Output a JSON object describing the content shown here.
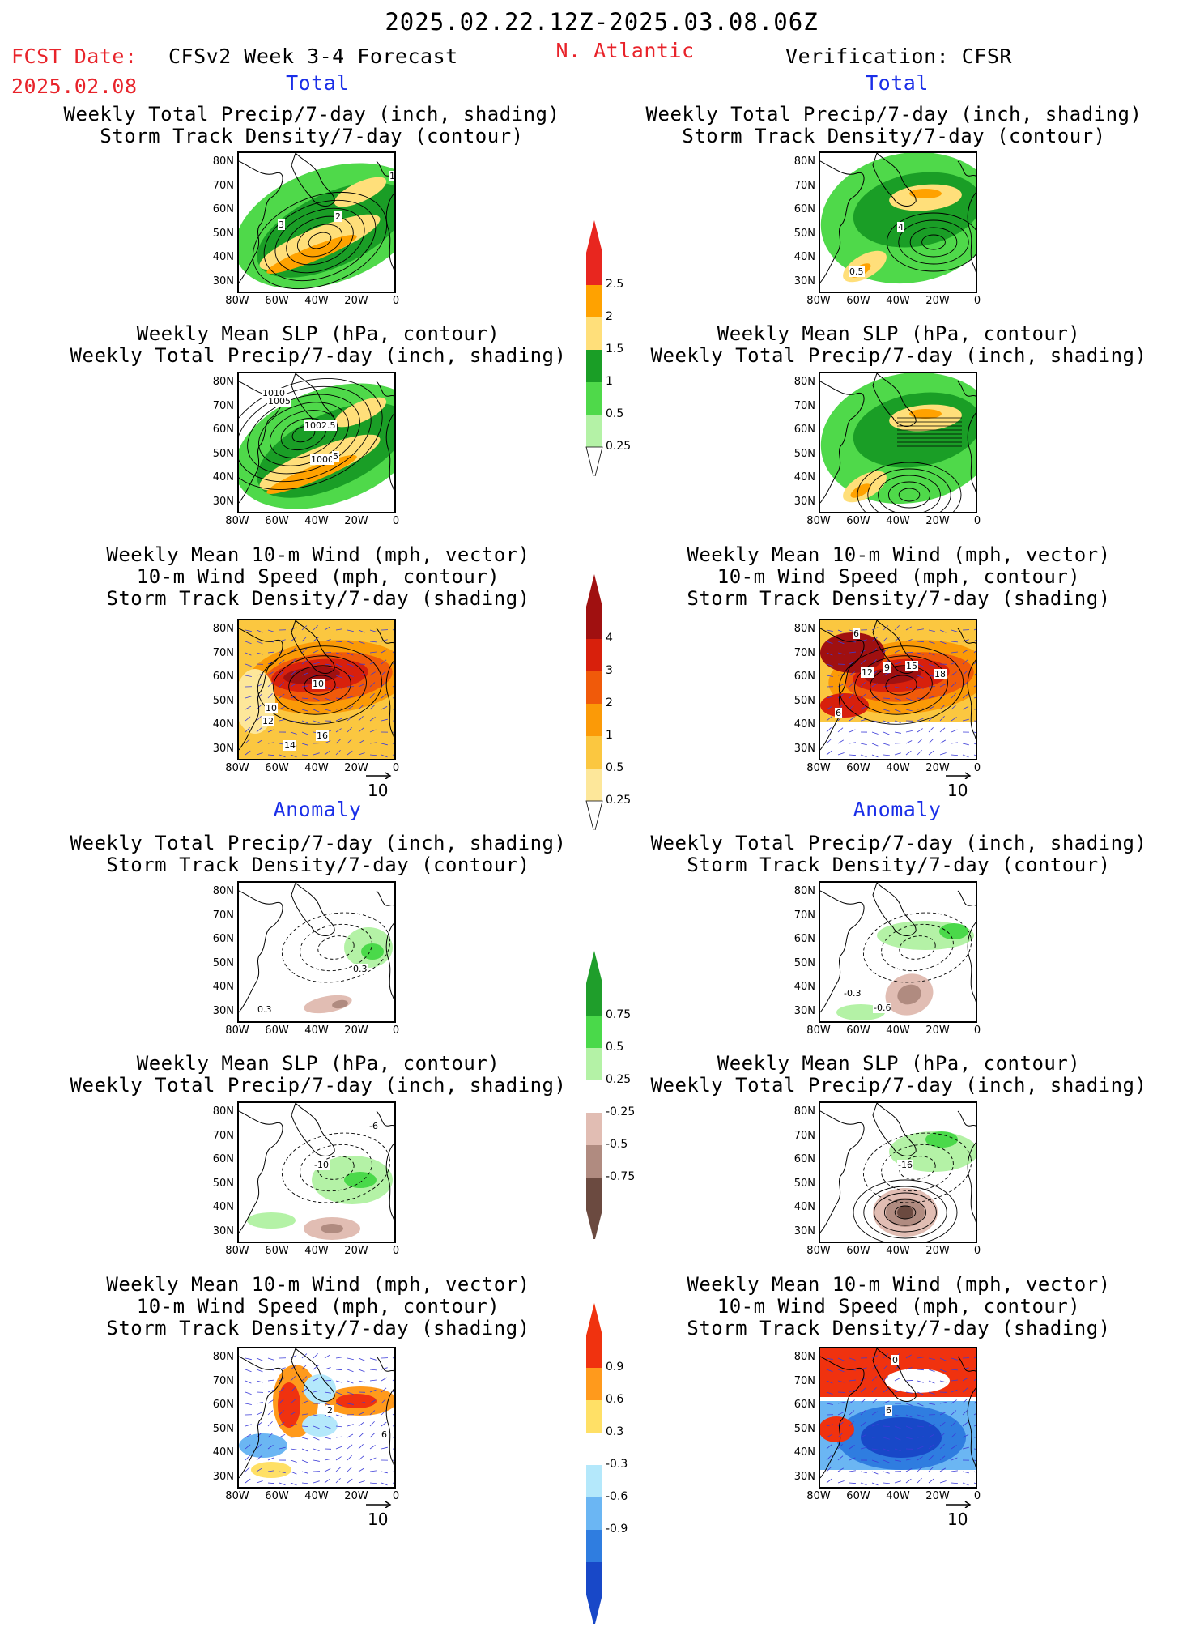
{
  "header": {
    "date_range": "2025.02.22.12Z-2025.03.08.06Z",
    "fcst_label": "FCST Date:",
    "fcst_date": "2025.02.08",
    "model": "CFSv2 Week 3-4 Forecast",
    "region": "N. Atlantic",
    "verification": "Verification: CFSR"
  },
  "sections": {
    "total": "Total",
    "anomaly": "Anomaly"
  },
  "titles": {
    "precip": "Weekly Total Precip/7-day (inch, shading)",
    "storm_contour": "Storm Track Density/7-day (contour)",
    "slp": "Weekly Mean SLP (hPa, contour)",
    "wind_vec": "Weekly Mean 10-m Wind (mph, vector)",
    "wind_speed": "10-m Wind Speed (mph, contour)",
    "storm_shading": "Storm Track Density/7-day (shading)"
  },
  "axes": {
    "lat": [
      "80N",
      "70N",
      "60N",
      "50N",
      "40N",
      "30N"
    ],
    "lon": [
      "80W",
      "60W",
      "40W",
      "20W",
      "0"
    ]
  },
  "vector_ref": "10",
  "colorbars": {
    "total_precip": {
      "labels": [
        "2.5",
        "2",
        "1.5",
        "1",
        "0.5",
        "0.25"
      ],
      "colors": [
        "#e8261f",
        "#ffa200",
        "#ffdf7a",
        "#1a9e26",
        "#4fd94a",
        "#b4f2a6"
      ]
    },
    "total_storm": {
      "labels": [
        "4",
        "3",
        "2",
        "1",
        "0.5",
        "0.25"
      ],
      "colors": [
        "#a01010",
        "#d8200c",
        "#f05a0a",
        "#fb9a07",
        "#fbc740",
        "#fde79a"
      ]
    },
    "anom_precip": {
      "labels": [
        "0.75",
        "0.5",
        "0.25",
        "-0.25",
        "-0.5",
        "-0.75"
      ],
      "colors": [
        "#1f9e2b",
        "#4ad94a",
        "#b4f2a6",
        "#ffffff",
        "#e1bdb3",
        "#b08b80",
        "#6b4a40"
      ]
    },
    "anom_storm": {
      "labels": [
        "0.9",
        "0.6",
        "0.3",
        "-0.3",
        "-0.6",
        "-0.9"
      ],
      "colors": [
        "#f0320f",
        "#ff9a1c",
        "#ffe066",
        "#ffffff",
        "#b4e8fb",
        "#6bb6f3",
        "#2f7de0",
        "#1848c8"
      ]
    }
  },
  "contour_labels": {
    "p1": [
      "1",
      "2",
      "3"
    ],
    "p2": [
      "4",
      "0.5"
    ],
    "p3": [
      "1010",
      "1005",
      "1002.5",
      "1000",
      "5"
    ],
    "p5": [
      "10",
      "10",
      "12",
      "14",
      "16"
    ],
    "p6": [
      "6",
      "12",
      "9",
      "15",
      "18",
      "6"
    ],
    "p7": [
      "0.3",
      "0.3"
    ],
    "p8": [
      "-0.3",
      "-0.6"
    ],
    "p9": [
      "-6",
      "-10"
    ],
    "p10": [
      "-16"
    ],
    "p11": [
      "2",
      "6"
    ],
    "p12": [
      "0",
      "6"
    ]
  }
}
